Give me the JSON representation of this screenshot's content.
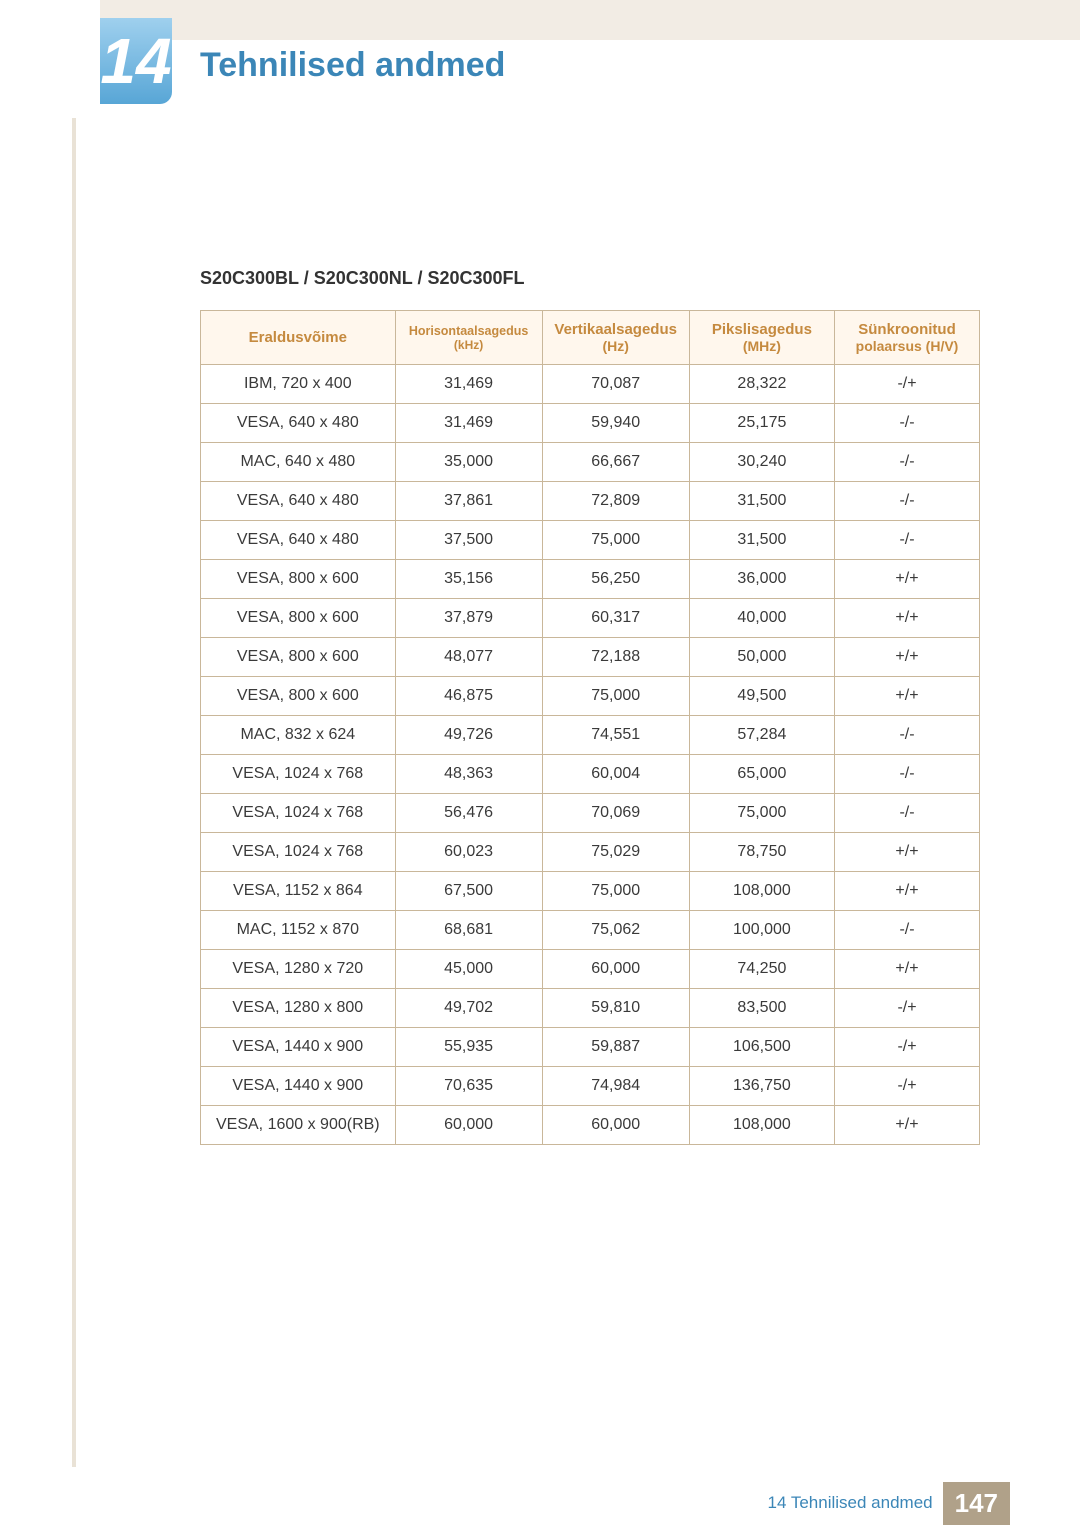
{
  "chapter": {
    "number": "14",
    "title": "Tehnilised andmed"
  },
  "section": {
    "heading": "S20C300BL / S20C300NL / S20C300FL"
  },
  "table": {
    "type": "table",
    "header_bg": "#fff7ed",
    "header_fg": "#c58a3f",
    "border_color": "#c9b79a",
    "columns": [
      {
        "label": "Eraldusvõime",
        "sub": ""
      },
      {
        "label": "Horisontaalsagedus",
        "sub": "(kHz)"
      },
      {
        "label": "Vertikaalsagedus",
        "sub": "(Hz)"
      },
      {
        "label": "Pikslisagedus",
        "sub": "(MHz)"
      },
      {
        "label": "Sünkroonitud",
        "sub": "polaarsus (H/V)"
      }
    ],
    "rows": [
      [
        "IBM, 720 x 400",
        "31,469",
        "70,087",
        "28,322",
        "-/+"
      ],
      [
        "VESA, 640 x 480",
        "31,469",
        "59,940",
        "25,175",
        "-/-"
      ],
      [
        "MAC, 640 x 480",
        "35,000",
        "66,667",
        "30,240",
        "-/-"
      ],
      [
        "VESA, 640 x 480",
        "37,861",
        "72,809",
        "31,500",
        "-/-"
      ],
      [
        "VESA, 640 x 480",
        "37,500",
        "75,000",
        "31,500",
        "-/-"
      ],
      [
        "VESA, 800 x 600",
        "35,156",
        "56,250",
        "36,000",
        "+/+"
      ],
      [
        "VESA, 800 x 600",
        "37,879",
        "60,317",
        "40,000",
        "+/+"
      ],
      [
        "VESA, 800 x 600",
        "48,077",
        "72,188",
        "50,000",
        "+/+"
      ],
      [
        "VESA, 800 x 600",
        "46,875",
        "75,000",
        "49,500",
        "+/+"
      ],
      [
        "MAC, 832 x 624",
        "49,726",
        "74,551",
        "57,284",
        "-/-"
      ],
      [
        "VESA, 1024 x 768",
        "48,363",
        "60,004",
        "65,000",
        "-/-"
      ],
      [
        "VESA, 1024 x 768",
        "56,476",
        "70,069",
        "75,000",
        "-/-"
      ],
      [
        "VESA, 1024 x 768",
        "60,023",
        "75,029",
        "78,750",
        "+/+"
      ],
      [
        "VESA, 1152 x 864",
        "67,500",
        "75,000",
        "108,000",
        "+/+"
      ],
      [
        "MAC, 1152 x 870",
        "68,681",
        "75,062",
        "100,000",
        "-/-"
      ],
      [
        "VESA, 1280 x 720",
        "45,000",
        "60,000",
        "74,250",
        "+/+"
      ],
      [
        "VESA, 1280 x 800",
        "49,702",
        "59,810",
        "83,500",
        "-/+"
      ],
      [
        "VESA, 1440 x 900",
        "55,935",
        "59,887",
        "106,500",
        "-/+"
      ],
      [
        "VESA, 1440 x 900",
        "70,635",
        "74,984",
        "136,750",
        "-/+"
      ],
      [
        "VESA, 1600 x 900(RB)",
        "60,000",
        "60,000",
        "108,000",
        "+/+"
      ]
    ]
  },
  "footer": {
    "label": "14 Tehnilised andmed",
    "page": "147"
  }
}
